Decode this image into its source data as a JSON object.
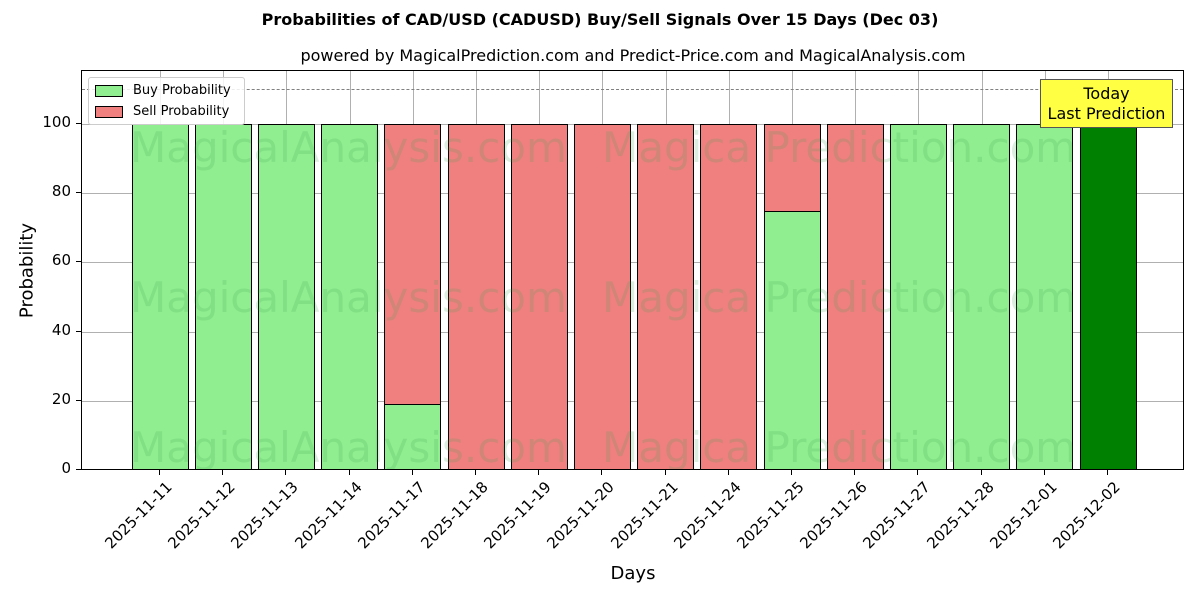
{
  "chart_data": {
    "type": "bar",
    "stacked": true,
    "title": "Probabilities of CAD/USD (CADUSD) Buy/Sell Signals Over 15 Days (Dec 03)",
    "subtitle": "powered by MagicalPrediction.com and Predict-Price.com and MagicalAnalysis.com",
    "xlabel": "Days",
    "ylabel": "Probability",
    "ylim": [
      0,
      115
    ],
    "yticks": [
      0,
      20,
      40,
      60,
      80,
      100
    ],
    "grid": true,
    "legend_position": "upper left",
    "reference_line": {
      "y": 110,
      "style": "dashed",
      "color": "#808080"
    },
    "categories": [
      "2025-11-11",
      "2025-11-12",
      "2025-11-13",
      "2025-11-14",
      "2025-11-17",
      "2025-11-18",
      "2025-11-19",
      "2025-11-20",
      "2025-11-21",
      "2025-11-24",
      "2025-11-25",
      "2025-11-26",
      "2025-11-27",
      "2025-11-28",
      "2025-12-01",
      "2025-12-02"
    ],
    "series": [
      {
        "name": "Buy Probability",
        "color": "#90ee90",
        "values": [
          100,
          100,
          100,
          100,
          19,
          0,
          0,
          0,
          0,
          0,
          75,
          0,
          100,
          100,
          100,
          100
        ]
      },
      {
        "name": "Sell Probability",
        "color": "#f08080",
        "values": [
          0,
          0,
          0,
          0,
          81,
          100,
          100,
          100,
          100,
          100,
          25,
          100,
          0,
          0,
          0,
          0
        ]
      }
    ],
    "highlight": {
      "category": "2025-12-02",
      "color": "#008000"
    },
    "annotation": {
      "text_line1": "Today",
      "text_line2": "Last Prediction",
      "background": "#ffff44"
    },
    "watermarks": [
      "MagicalAnalysis.com",
      "MagicalPrediction.com"
    ]
  }
}
